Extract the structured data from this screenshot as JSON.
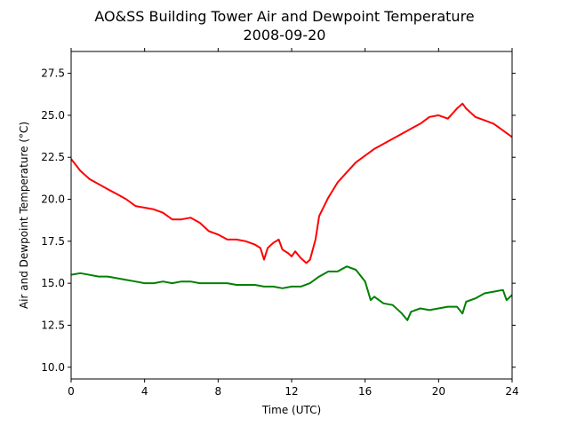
{
  "chart_data": {
    "type": "line",
    "title": "AO&SS Building Tower Air and Dewpoint Temperature",
    "subtitle": "2008-09-20",
    "xlabel": "Time (UTC)",
    "ylabel": "Air and Dewpoint Temperature (°C)",
    "xlim": [
      0,
      24
    ],
    "ylim": [
      9.3,
      28.8
    ],
    "xticks": [
      0,
      4,
      8,
      12,
      16,
      20,
      24
    ],
    "xtick_labels": [
      "0",
      "4",
      "8",
      "12",
      "16",
      "20",
      "24"
    ],
    "yticks": [
      10.0,
      12.5,
      15.0,
      17.5,
      20.0,
      22.5,
      25.0,
      27.5
    ],
    "ytick_labels": [
      "10.0",
      "12.5",
      "15.0",
      "17.5",
      "20.0",
      "22.5",
      "25.0",
      "27.5"
    ],
    "grid": false,
    "series": [
      {
        "color": "#ff0000",
        "x": [
          0,
          0.5,
          1,
          1.5,
          2,
          2.5,
          3,
          3.5,
          4,
          4.5,
          5,
          5.5,
          6,
          6.5,
          7,
          7.5,
          8,
          8.5,
          9,
          9.5,
          10,
          10.3,
          10.5,
          10.7,
          11,
          11.3,
          11.5,
          11.8,
          12,
          12.2,
          12.5,
          12.8,
          13,
          13.3,
          13.5,
          14,
          14.5,
          15,
          15.5,
          16,
          16.5,
          17,
          17.5,
          18,
          18.5,
          19,
          19.5,
          20,
          20.5,
          21,
          21.3,
          21.5,
          22,
          22.5,
          23,
          23.5,
          24
        ],
        "values": [
          22.4,
          21.7,
          21.2,
          20.9,
          20.6,
          20.3,
          20.0,
          19.6,
          19.5,
          19.4,
          19.2,
          18.8,
          18.8,
          18.9,
          18.6,
          18.1,
          17.9,
          17.6,
          17.6,
          17.5,
          17.3,
          17.1,
          16.4,
          17.1,
          17.4,
          17.6,
          17.0,
          16.8,
          16.6,
          16.9,
          16.5,
          16.2,
          16.4,
          17.6,
          19.0,
          20.1,
          21.0,
          21.6,
          22.2,
          22.6,
          23.0,
          23.3,
          23.6,
          23.9,
          24.2,
          24.5,
          24.9,
          25.0,
          24.8,
          25.4,
          25.7,
          25.4,
          24.9,
          24.7,
          24.5,
          24.1,
          23.7
        ]
      },
      {
        "color": "#008000",
        "x": [
          0,
          0.5,
          1,
          1.5,
          2,
          2.5,
          3,
          3.5,
          4,
          4.5,
          5,
          5.5,
          6,
          6.5,
          7,
          7.5,
          8,
          8.5,
          9,
          9.5,
          10,
          10.5,
          11,
          11.5,
          12,
          12.5,
          13,
          13.5,
          14,
          14.5,
          15,
          15.5,
          16,
          16.3,
          16.5,
          17,
          17.5,
          18,
          18.3,
          18.5,
          19,
          19.5,
          20,
          20.5,
          21,
          21.3,
          21.5,
          22,
          22.5,
          23,
          23.5,
          23.7,
          24
        ],
        "values": [
          15.5,
          15.6,
          15.5,
          15.4,
          15.4,
          15.3,
          15.2,
          15.1,
          15.0,
          15.0,
          15.1,
          15.0,
          15.1,
          15.1,
          15.0,
          15.0,
          15.0,
          15.0,
          14.9,
          14.9,
          14.9,
          14.8,
          14.8,
          14.7,
          14.8,
          14.8,
          15.0,
          15.4,
          15.7,
          15.7,
          16.0,
          15.8,
          15.1,
          14.0,
          14.2,
          13.8,
          13.7,
          13.2,
          12.8,
          13.3,
          13.5,
          13.4,
          13.5,
          13.6,
          13.6,
          13.2,
          13.9,
          14.1,
          14.4,
          14.5,
          14.6,
          14.0,
          14.3
        ]
      }
    ]
  }
}
